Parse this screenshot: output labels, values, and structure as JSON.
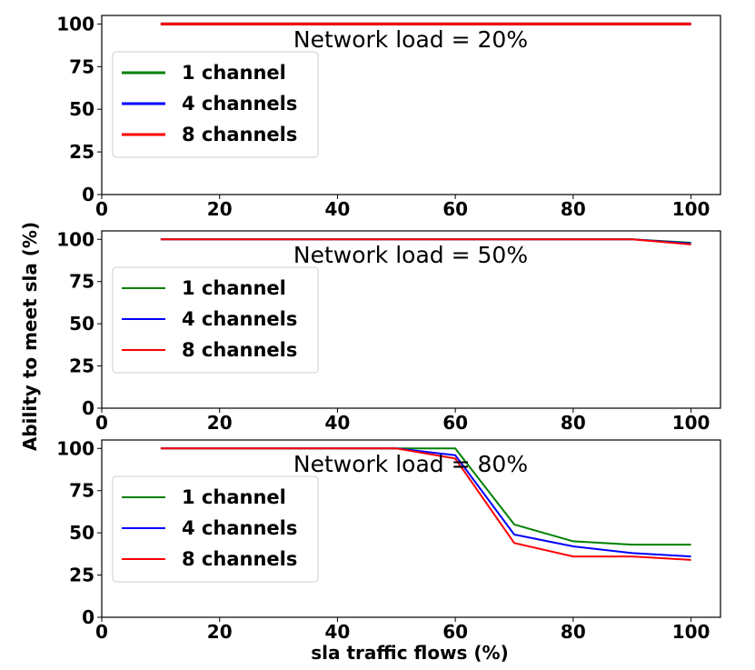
{
  "chart_data": {
    "type": "line",
    "ylabel": "Ability to meet sla (%)",
    "xlabel": "sla traffic flows (%)",
    "colors": {
      "1 channel": "#008000",
      "4 channels": "#0000ff",
      "8 channels": "#ff0000"
    },
    "panels": [
      {
        "title": "Network load = 20%",
        "xlim": [
          0,
          105
        ],
        "ylim": [
          0,
          105
        ],
        "xticks": [
          "0",
          "20",
          "40",
          "60",
          "80",
          "100"
        ],
        "yticks": [
          "0",
          "25",
          "50",
          "75",
          "100"
        ],
        "legend_position": "upper-left",
        "line_style": "thick",
        "x": [
          10,
          20,
          30,
          40,
          50,
          60,
          70,
          80,
          90,
          100
        ],
        "series": [
          {
            "name": "1 channel",
            "values": [
              100,
              100,
              100,
              100,
              100,
              100,
              100,
              100,
              100,
              100
            ]
          },
          {
            "name": "4 channels",
            "values": [
              100,
              100,
              100,
              100,
              100,
              100,
              100,
              100,
              100,
              100
            ]
          },
          {
            "name": "8 channels",
            "values": [
              100,
              100,
              100,
              100,
              100,
              100,
              100,
              100,
              100,
              100
            ]
          }
        ]
      },
      {
        "title": "Network load = 50%",
        "xlim": [
          0,
          105
        ],
        "ylim": [
          0,
          105
        ],
        "xticks": [
          "0",
          "20",
          "40",
          "60",
          "80",
          "100"
        ],
        "yticks": [
          "0",
          "25",
          "50",
          "75",
          "100"
        ],
        "legend_position": "upper-left",
        "line_style": "thin",
        "x": [
          10,
          20,
          30,
          40,
          50,
          60,
          70,
          80,
          90,
          100
        ],
        "series": [
          {
            "name": "1 channel",
            "values": [
              100,
              100,
              100,
              100,
              100,
              100,
              100,
              100,
              100,
              98
            ]
          },
          {
            "name": "4 channels",
            "values": [
              100,
              100,
              100,
              100,
              100,
              100,
              100,
              100,
              100,
              97.5
            ]
          },
          {
            "name": "8 channels",
            "values": [
              100,
              100,
              100,
              100,
              100,
              100,
              100,
              100,
              100,
              97
            ]
          }
        ]
      },
      {
        "title": "Network load = 80%",
        "xlim": [
          0,
          105
        ],
        "ylim": [
          0,
          105
        ],
        "xticks": [
          "0",
          "20",
          "40",
          "60",
          "80",
          "100"
        ],
        "yticks": [
          "0",
          "25",
          "50",
          "75",
          "100"
        ],
        "legend_position": "upper-left",
        "line_style": "thin",
        "x": [
          10,
          20,
          30,
          40,
          50,
          60,
          70,
          80,
          90,
          100
        ],
        "series": [
          {
            "name": "1 channel",
            "values": [
              100,
              100,
              100,
              100,
              100,
              100,
              55,
              45,
              43,
              43
            ]
          },
          {
            "name": "4 channels",
            "values": [
              100,
              100,
              100,
              100,
              100,
              96,
              49,
              42,
              38,
              36
            ]
          },
          {
            "name": "8 channels",
            "values": [
              100,
              100,
              100,
              100,
              100,
              94,
              44,
              36,
              36,
              34
            ]
          }
        ]
      }
    ]
  }
}
